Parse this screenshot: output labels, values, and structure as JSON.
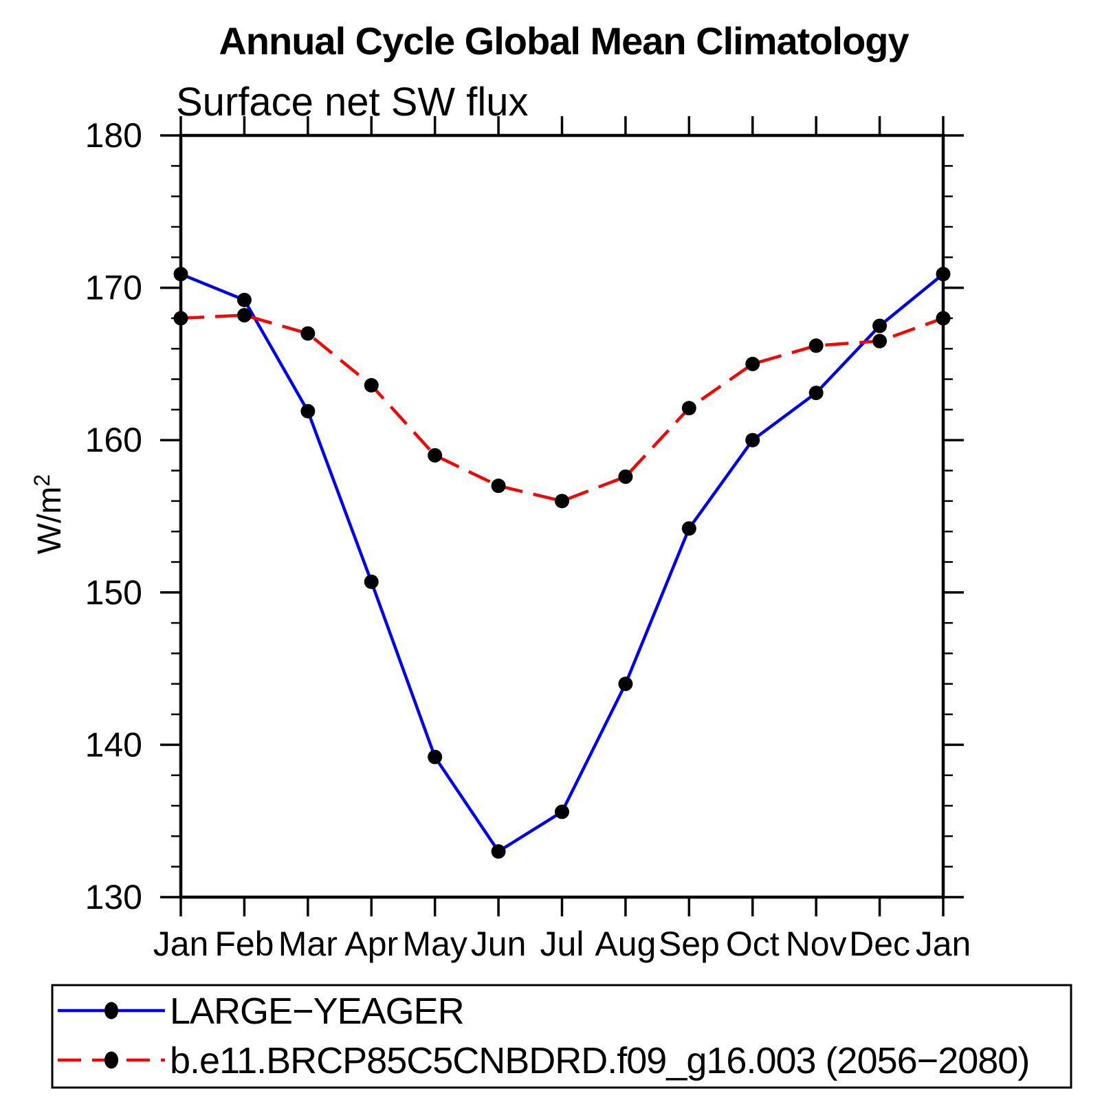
{
  "title": "Annual Cycle Global Mean Climatology",
  "subtitle": "Surface net SW flux",
  "y_axis": {
    "label_base": "W/m",
    "label_sup": "2",
    "tick_labels": [
      "130",
      "140",
      "150",
      "160",
      "170",
      "180"
    ]
  },
  "x_axis": {
    "tick_labels": [
      "Jan",
      "Feb",
      "Mar",
      "Apr",
      "May",
      "Jun",
      "Jul",
      "Aug",
      "Sep",
      "Oct",
      "Nov",
      "Dec",
      "Jan"
    ]
  },
  "colors": {
    "background": "#ffffff",
    "axis": "#000000",
    "marker": "#000000",
    "series1": "#0000ff",
    "series2": "#ff0000"
  },
  "legend": {
    "entries": [
      {
        "label": "LARGE−YEAGER",
        "line_style": "solid",
        "line_color": "#0000ff",
        "marker": "filled-circle"
      },
      {
        "label": "b.e11.BRCP85C5CNBDRD.f09_g16.003 (2056−2080)",
        "line_style": "dashed",
        "line_color": "#ff0000",
        "marker": "filled-circle"
      }
    ]
  },
  "chart_data": {
    "type": "line",
    "title": "Annual Cycle Global Mean Climatology",
    "subtitle": "Surface net SW flux",
    "xlabel": "",
    "ylabel": "W/m^2",
    "categories": [
      "Jan",
      "Feb",
      "Mar",
      "Apr",
      "May",
      "Jun",
      "Jul",
      "Aug",
      "Sep",
      "Oct",
      "Nov",
      "Dec",
      "Jan"
    ],
    "ylim": [
      130,
      180
    ],
    "ytick_major_step": 10,
    "ytick_minor_step": 2,
    "grid": false,
    "legend_position": "bottom-left-box",
    "series": [
      {
        "name": "LARGE−YEAGER",
        "color": "#0000ff",
        "line_style": "solid",
        "marker": "circle",
        "marker_color": "#000000",
        "values": [
          170.9,
          169.2,
          161.9,
          150.7,
          139.2,
          133.0,
          135.6,
          144.0,
          154.2,
          160.0,
          163.1,
          167.5,
          170.9
        ]
      },
      {
        "name": "b.e11.BRCP85C5CNBDRD.f09_g16.003 (2056−2080)",
        "color": "#ff0000",
        "line_style": "dashed",
        "marker": "circle",
        "marker_color": "#000000",
        "values": [
          168.0,
          168.2,
          167.0,
          163.6,
          159.0,
          157.0,
          156.0,
          157.6,
          162.1,
          165.0,
          166.2,
          166.5,
          168.0
        ]
      }
    ]
  }
}
